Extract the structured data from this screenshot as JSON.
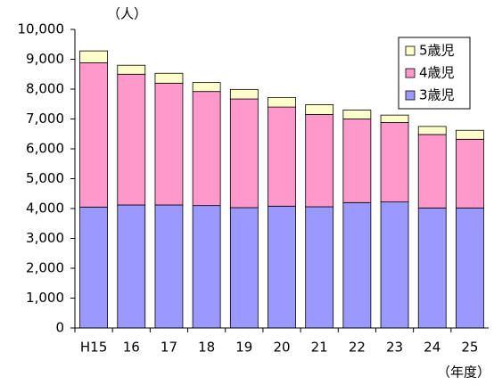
{
  "chart_data": {
    "type": "stacked_bar",
    "unit_y": "（人）",
    "unit_x": "（年度）",
    "categories": [
      "H15",
      "16",
      "17",
      "18",
      "19",
      "20",
      "21",
      "22",
      "23",
      "24",
      "25"
    ],
    "series": [
      {
        "name": "3歳児",
        "color": "#9999ff",
        "values": [
          4050,
          4120,
          4120,
          4100,
          4030,
          4080,
          4060,
          4200,
          4220,
          4020,
          4020
        ]
      },
      {
        "name": "4歳児",
        "color": "#ff99cc",
        "values": [
          4830,
          4380,
          4080,
          3820,
          3640,
          3320,
          3090,
          2800,
          2660,
          2460,
          2300
        ]
      },
      {
        "name": "5歳児",
        "color": "#ffffcc",
        "values": [
          400,
          300,
          330,
          300,
          320,
          320,
          330,
          300,
          250,
          270,
          300
        ]
      }
    ],
    "ylim": [
      0,
      10000
    ],
    "yticks": [
      0,
      {
        "value": 1000,
        "label": "1,000"
      },
      {
        "value": 2000,
        "label": "2,000"
      },
      {
        "value": 3000,
        "label": "3,000"
      },
      {
        "value": 4000,
        "label": "4,000"
      },
      {
        "value": 5000,
        "label": "5,000"
      },
      {
        "value": 6000,
        "label": "6,000"
      },
      {
        "value": 7000,
        "label": "7,000"
      },
      {
        "value": 8000,
        "label": "8,000"
      },
      {
        "value": 9000,
        "label": "9,000"
      },
      {
        "value": 10000,
        "label": "10,000"
      }
    ],
    "legend": "top-right",
    "grid": false
  }
}
